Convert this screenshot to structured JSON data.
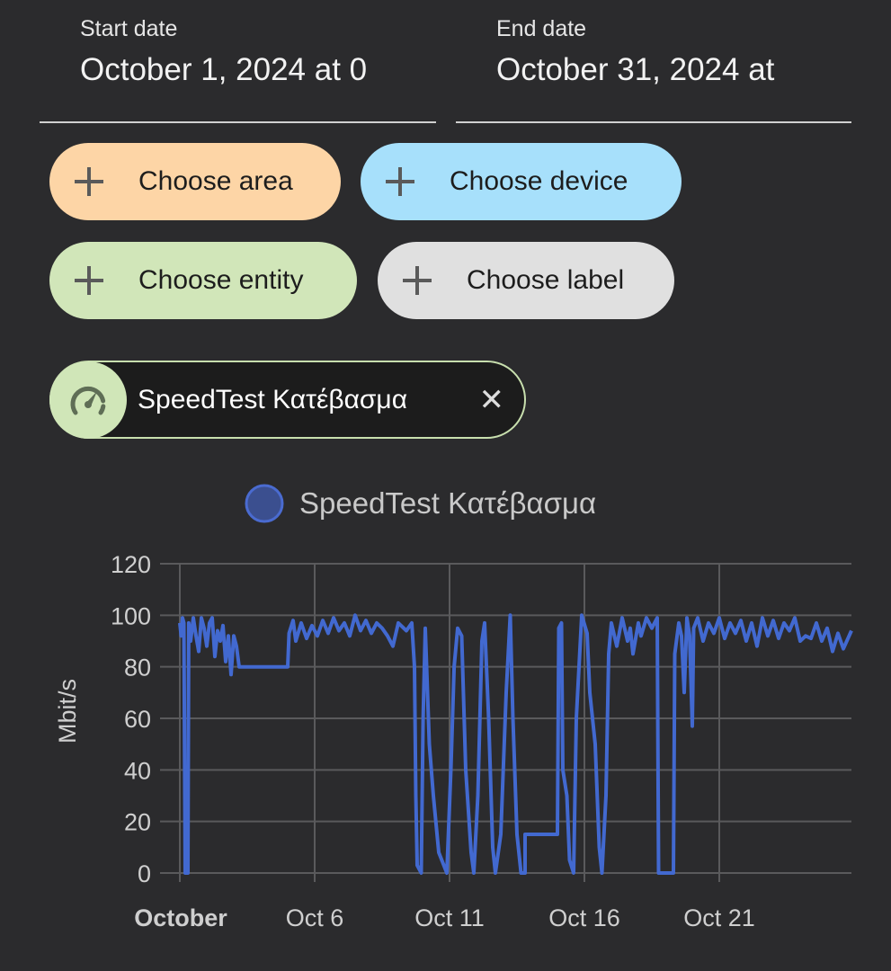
{
  "start_date": {
    "label": "Start date",
    "value": "October 1, 2024 at 0"
  },
  "end_date": {
    "label": "End date",
    "value": "October 31, 2024 at"
  },
  "chips": {
    "area": {
      "label": "Choose area",
      "color": "#fdd5a6"
    },
    "device": {
      "label": "Choose device",
      "color": "#a7e0fb"
    },
    "entity": {
      "label": "Choose entity",
      "color": "#d1e6b9"
    },
    "label": {
      "label": "Choose label",
      "color": "#e0e0e0"
    }
  },
  "selected_entity": {
    "name": "SpeedTest Κατέβασμα",
    "icon": "speedometer-icon",
    "remove_icon": "close-icon"
  },
  "chart_data": {
    "type": "line",
    "title": "",
    "legend": [
      {
        "name": "SpeedTest Κατέβασμα",
        "color": "#4269d0"
      }
    ],
    "legend_position": "top-center",
    "ylabel": "Mbit/s",
    "xlabel": "",
    "ylim": [
      0,
      120
    ],
    "yticks": [
      0,
      20,
      40,
      60,
      80,
      100,
      120
    ],
    "xlim": [
      1,
      25.9
    ],
    "xticks": [
      {
        "day": 1,
        "label": "October",
        "bold": true
      },
      {
        "day": 6,
        "label": "Oct 6"
      },
      {
        "day": 11,
        "label": "Oct 11"
      },
      {
        "day": 16,
        "label": "Oct 16"
      },
      {
        "day": 21,
        "label": "Oct 21"
      }
    ],
    "grid": true,
    "series": [
      {
        "name": "SpeedTest Κατέβασμα",
        "x_unit": "day of October",
        "points": [
          [
            1.0,
            97
          ],
          [
            1.05,
            92
          ],
          [
            1.1,
            99
          ],
          [
            1.15,
            97
          ],
          [
            1.17,
            60
          ],
          [
            1.2,
            0
          ],
          [
            1.3,
            0
          ],
          [
            1.33,
            97
          ],
          [
            1.4,
            90
          ],
          [
            1.5,
            99
          ],
          [
            1.6,
            92
          ],
          [
            1.7,
            86
          ],
          [
            1.8,
            99
          ],
          [
            1.9,
            95
          ],
          [
            2.0,
            88
          ],
          [
            2.1,
            97
          ],
          [
            2.2,
            99
          ],
          [
            2.3,
            84
          ],
          [
            2.4,
            94
          ],
          [
            2.5,
            90
          ],
          [
            2.6,
            96
          ],
          [
            2.7,
            82
          ],
          [
            2.8,
            92
          ],
          [
            2.9,
            77
          ],
          [
            3.0,
            92
          ],
          [
            3.1,
            88
          ],
          [
            3.2,
            80
          ],
          [
            5.0,
            80
          ],
          [
            5.05,
            93
          ],
          [
            5.2,
            98
          ],
          [
            5.3,
            90
          ],
          [
            5.5,
            97
          ],
          [
            5.7,
            91
          ],
          [
            5.9,
            96
          ],
          [
            6.1,
            92
          ],
          [
            6.3,
            98
          ],
          [
            6.5,
            93
          ],
          [
            6.7,
            99
          ],
          [
            6.9,
            94
          ],
          [
            7.1,
            97
          ],
          [
            7.3,
            92
          ],
          [
            7.5,
            100
          ],
          [
            7.7,
            94
          ],
          [
            7.9,
            98
          ],
          [
            8.1,
            93
          ],
          [
            8.3,
            97
          ],
          [
            8.5,
            95
          ],
          [
            8.7,
            92
          ],
          [
            8.9,
            88
          ],
          [
            9.1,
            97
          ],
          [
            9.4,
            94
          ],
          [
            9.6,
            97
          ],
          [
            9.7,
            80
          ],
          [
            9.75,
            30
          ],
          [
            9.8,
            3
          ],
          [
            9.95,
            0
          ],
          [
            10.02,
            60
          ],
          [
            10.1,
            95
          ],
          [
            10.15,
            80
          ],
          [
            10.25,
            50
          ],
          [
            10.4,
            30
          ],
          [
            10.6,
            8
          ],
          [
            10.9,
            0
          ],
          [
            11.05,
            40
          ],
          [
            11.17,
            80
          ],
          [
            11.3,
            95
          ],
          [
            11.45,
            92
          ],
          [
            11.6,
            40
          ],
          [
            11.8,
            8
          ],
          [
            11.9,
            0
          ],
          [
            12.05,
            30
          ],
          [
            12.2,
            90
          ],
          [
            12.3,
            97
          ],
          [
            12.45,
            60
          ],
          [
            12.6,
            10
          ],
          [
            12.7,
            0
          ],
          [
            12.9,
            15
          ],
          [
            13.1,
            70
          ],
          [
            13.25,
            100
          ],
          [
            13.35,
            60
          ],
          [
            13.5,
            15
          ],
          [
            13.65,
            0
          ],
          [
            13.8,
            0
          ],
          [
            13.8,
            15
          ],
          [
            15.0,
            15
          ],
          [
            15.05,
            95
          ],
          [
            15.15,
            97
          ],
          [
            15.2,
            40
          ],
          [
            15.35,
            30
          ],
          [
            15.45,
            5
          ],
          [
            15.6,
            0
          ],
          [
            15.7,
            60
          ],
          [
            15.9,
            100
          ],
          [
            16.1,
            93
          ],
          [
            16.2,
            70
          ],
          [
            16.4,
            50
          ],
          [
            16.55,
            10
          ],
          [
            16.65,
            0
          ],
          [
            16.8,
            30
          ],
          [
            16.9,
            85
          ],
          [
            17.0,
            97
          ],
          [
            17.2,
            88
          ],
          [
            17.4,
            99
          ],
          [
            17.6,
            90
          ],
          [
            17.7,
            95
          ],
          [
            17.8,
            85
          ],
          [
            18.0,
            97
          ],
          [
            18.1,
            92
          ],
          [
            18.3,
            99
          ],
          [
            18.5,
            95
          ],
          [
            18.7,
            99
          ],
          [
            18.75,
            0
          ],
          [
            19.3,
            0
          ],
          [
            19.35,
            85
          ],
          [
            19.5,
            97
          ],
          [
            19.6,
            92
          ],
          [
            19.7,
            70
          ],
          [
            19.8,
            99
          ],
          [
            19.9,
            92
          ],
          [
            20.0,
            57
          ],
          [
            20.05,
            95
          ],
          [
            20.2,
            99
          ],
          [
            20.4,
            90
          ],
          [
            20.6,
            97
          ],
          [
            20.8,
            93
          ],
          [
            21.0,
            99
          ],
          [
            21.2,
            91
          ],
          [
            21.4,
            97
          ],
          [
            21.6,
            93
          ],
          [
            21.8,
            98
          ],
          [
            22.0,
            90
          ],
          [
            22.2,
            97
          ],
          [
            22.4,
            88
          ],
          [
            22.6,
            99
          ],
          [
            22.8,
            92
          ],
          [
            23.0,
            98
          ],
          [
            23.2,
            91
          ],
          [
            23.4,
            97
          ],
          [
            23.6,
            94
          ],
          [
            23.8,
            99
          ],
          [
            24.0,
            90
          ],
          [
            24.2,
            92
          ],
          [
            24.4,
            91
          ],
          [
            24.6,
            97
          ],
          [
            24.8,
            90
          ],
          [
            25.0,
            95
          ],
          [
            25.2,
            86
          ],
          [
            25.4,
            93
          ],
          [
            25.6,
            87
          ],
          [
            25.9,
            94
          ]
        ]
      }
    ]
  }
}
